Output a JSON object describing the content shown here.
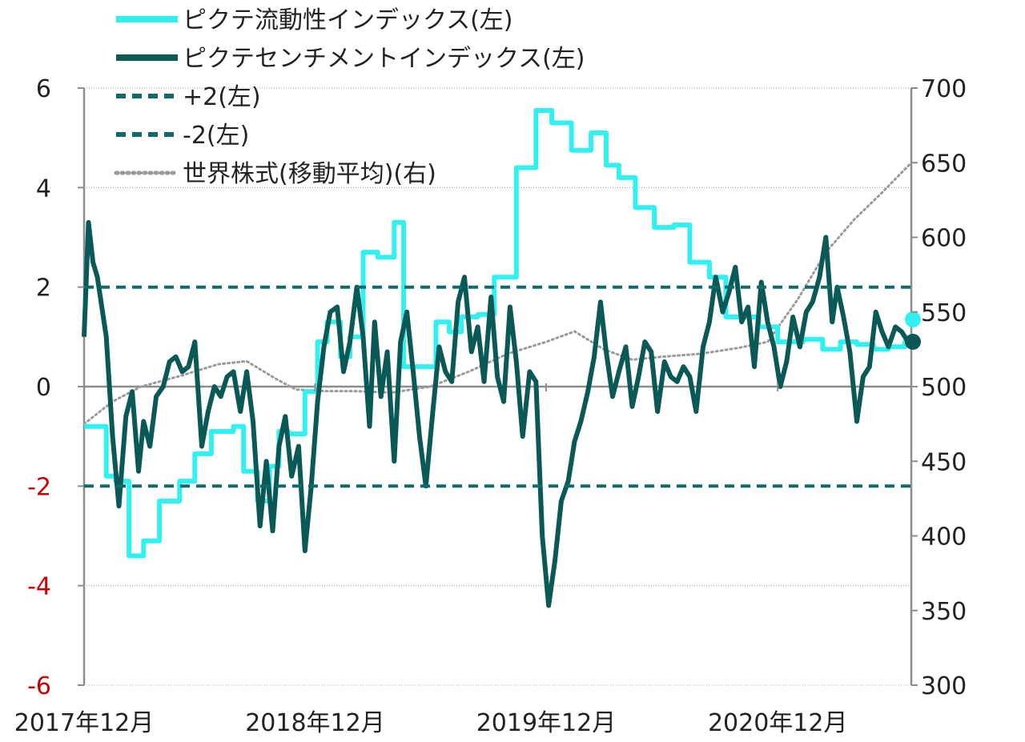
{
  "chart_data": {
    "type": "line",
    "title": "",
    "xlabel": "",
    "ylabel_left": "",
    "ylabel_right": "",
    "x_range": [
      "2017-12-01",
      "2021-06-30"
    ],
    "x_tick_labels": [
      "2017年12月",
      "2018年12月",
      "2019年12月",
      "2020年12月"
    ],
    "x_tick_dates": [
      "2017-12-01",
      "2018-12-01",
      "2019-12-01",
      "2020-12-01"
    ],
    "ylim_left": [
      -6,
      6
    ],
    "left_ticks": [
      {
        "value": 6,
        "label": "6",
        "color": "#222222"
      },
      {
        "value": 4,
        "label": "4",
        "color": "#222222"
      },
      {
        "value": 2,
        "label": "2",
        "color": "#222222"
      },
      {
        "value": 0,
        "label": "0",
        "color": "#222222"
      },
      {
        "value": -2,
        "label": "-2",
        "color": "#cc0000"
      },
      {
        "value": -4,
        "label": "-4",
        "color": "#cc0000"
      },
      {
        "value": -6,
        "label": "-6",
        "color": "#cc0000"
      }
    ],
    "ylim_right": [
      300,
      700
    ],
    "right_ticks": [
      {
        "value": 700,
        "label": "700"
      },
      {
        "value": 650,
        "label": "650"
      },
      {
        "value": 600,
        "label": "600"
      },
      {
        "value": 550,
        "label": "550"
      },
      {
        "value": 500,
        "label": "500"
      },
      {
        "value": 450,
        "label": "450"
      },
      {
        "value": 400,
        "label": "400"
      },
      {
        "value": 350,
        "label": "350"
      },
      {
        "value": 300,
        "label": "300"
      }
    ],
    "gridlines_left": [
      6,
      4,
      -4,
      -6
    ],
    "legend_position": "top-left",
    "legend": [
      {
        "label": "ピクテ流動性インデックス(左)",
        "style": "solid",
        "color": "#33f0f0",
        "width": 6
      },
      {
        "label": "ピクテセンチメントインデックス(左)",
        "style": "solid",
        "color": "#0b5957",
        "width": 6
      },
      {
        "label": "+2(左)",
        "style": "dashed",
        "color": "#0f6b6b",
        "width": 4
      },
      {
        "label": "-2(左)",
        "style": "dashed",
        "color": "#0f6b6b",
        "width": 4
      },
      {
        "label": "世界株式(移動平均)(右)",
        "style": "dotted",
        "color": "#9a9a9a",
        "width": 3
      }
    ],
    "series": [
      {
        "name": "ピクテ流動性インデックス(左)",
        "axis": "left",
        "color": "#33f0f0",
        "step": true,
        "x": [
          "2017-12-01",
          "2018-01-05",
          "2018-01-20",
          "2018-02-10",
          "2018-03-05",
          "2018-03-30",
          "2018-05-01",
          "2018-05-25",
          "2018-06-20",
          "2018-07-25",
          "2018-08-10",
          "2018-09-01",
          "2018-09-20",
          "2018-10-05",
          "2018-10-20",
          "2018-11-15",
          "2018-12-05",
          "2018-12-20",
          "2019-01-10",
          "2019-01-25",
          "2019-02-15",
          "2019-03-10",
          "2019-04-05",
          "2019-04-20",
          "2019-05-15",
          "2019-06-10",
          "2019-07-01",
          "2019-07-20",
          "2019-08-15",
          "2019-09-10",
          "2019-10-15",
          "2019-11-15",
          "2019-12-10",
          "2020-01-10",
          "2020-02-10",
          "2020-03-05",
          "2020-03-25",
          "2020-04-20",
          "2020-05-20",
          "2020-06-20",
          "2020-07-15",
          "2020-08-15",
          "2020-09-10",
          "2020-10-05",
          "2020-11-01",
          "2020-12-01",
          "2020-12-20",
          "2021-01-10",
          "2021-02-10",
          "2021-03-10",
          "2021-04-05",
          "2021-05-01",
          "2021-05-25",
          "2021-06-20",
          "2021-06-30"
        ],
        "y": [
          -0.8,
          -1.8,
          -1.9,
          -3.4,
          -3.1,
          -2.3,
          -1.9,
          -1.35,
          -0.9,
          -0.8,
          -1.7,
          -2.3,
          -1.6,
          -0.9,
          -0.95,
          -0.1,
          0.9,
          1.3,
          0.6,
          1.0,
          2.7,
          2.6,
          3.3,
          0.4,
          0.4,
          1.3,
          1.1,
          1.4,
          1.45,
          2.2,
          4.4,
          5.55,
          5.3,
          4.75,
          5.1,
          4.45,
          4.2,
          3.6,
          3.2,
          3.25,
          2.5,
          2.2,
          1.4,
          1.4,
          1.2,
          0.9,
          0.9,
          0.95,
          0.75,
          0.9,
          0.85,
          0.75,
          0.8,
          0.9,
          0.9
        ]
      },
      {
        "name": "ピクテセンチメントインデックス(左)",
        "axis": "left",
        "color": "#0b5957",
        "step": false,
        "x": [
          "2017-12-01",
          "2017-12-08",
          "2017-12-15",
          "2017-12-22",
          "2018-01-05",
          "2018-01-15",
          "2018-01-25",
          "2018-02-05",
          "2018-02-15",
          "2018-02-25",
          "2018-03-05",
          "2018-03-15",
          "2018-03-25",
          "2018-04-05",
          "2018-04-15",
          "2018-04-25",
          "2018-05-05",
          "2018-05-15",
          "2018-05-25",
          "2018-06-05",
          "2018-06-15",
          "2018-06-25",
          "2018-07-05",
          "2018-07-15",
          "2018-07-25",
          "2018-08-05",
          "2018-08-15",
          "2018-08-25",
          "2018-09-05",
          "2018-09-15",
          "2018-09-25",
          "2018-10-05",
          "2018-10-15",
          "2018-10-25",
          "2018-11-05",
          "2018-11-15",
          "2018-11-25",
          "2018-12-05",
          "2018-12-15",
          "2018-12-25",
          "2019-01-05",
          "2019-01-15",
          "2019-01-25",
          "2019-02-05",
          "2019-02-15",
          "2019-02-25",
          "2019-03-05",
          "2019-03-15",
          "2019-03-25",
          "2019-04-05",
          "2019-04-15",
          "2019-04-25",
          "2019-05-05",
          "2019-05-15",
          "2019-05-25",
          "2019-06-05",
          "2019-06-15",
          "2019-06-25",
          "2019-07-05",
          "2019-07-15",
          "2019-07-25",
          "2019-08-05",
          "2019-08-15",
          "2019-08-25",
          "2019-09-05",
          "2019-09-15",
          "2019-09-25",
          "2019-10-05",
          "2019-10-15",
          "2019-10-25",
          "2019-11-05",
          "2019-11-15",
          "2019-11-25",
          "2019-12-05",
          "2019-12-15",
          "2019-12-25",
          "2020-01-05",
          "2020-01-15",
          "2020-01-25",
          "2020-02-05",
          "2020-02-15",
          "2020-02-25",
          "2020-03-05",
          "2020-03-15",
          "2020-03-25",
          "2020-04-05",
          "2020-04-15",
          "2020-04-25",
          "2020-05-05",
          "2020-05-15",
          "2020-05-25",
          "2020-06-05",
          "2020-06-15",
          "2020-06-25",
          "2020-07-05",
          "2020-07-15",
          "2020-07-25",
          "2020-08-05",
          "2020-08-15",
          "2020-08-25",
          "2020-09-05",
          "2020-09-15",
          "2020-09-25",
          "2020-10-05",
          "2020-10-15",
          "2020-10-25",
          "2020-11-05",
          "2020-11-15",
          "2020-11-25",
          "2020-12-05",
          "2020-12-15",
          "2020-12-25",
          "2021-01-05",
          "2021-01-15",
          "2021-01-25",
          "2021-02-05",
          "2021-02-15",
          "2021-02-25",
          "2021-03-05",
          "2021-03-15",
          "2021-03-25",
          "2021-04-05",
          "2021-04-15",
          "2021-04-25",
          "2021-05-05",
          "2021-05-15",
          "2021-05-25",
          "2021-06-05",
          "2021-06-15",
          "2021-06-25"
        ],
        "y": [
          1.0,
          3.3,
          2.5,
          2.2,
          1.0,
          -1.0,
          -2.4,
          -0.6,
          -0.1,
          -1.7,
          -0.7,
          -1.2,
          -0.2,
          0.0,
          0.5,
          0.6,
          0.3,
          0.4,
          0.9,
          -1.2,
          -0.5,
          0.0,
          -0.2,
          0.2,
          0.3,
          -0.5,
          0.3,
          -0.7,
          -2.8,
          -1.5,
          -2.9,
          -1.2,
          -0.6,
          -1.8,
          -1.2,
          -3.3,
          -2.0,
          -0.3,
          0.8,
          1.5,
          1.6,
          0.3,
          0.9,
          2.0,
          1.0,
          -0.8,
          1.3,
          -0.2,
          0.7,
          -1.5,
          0.9,
          1.5,
          0.3,
          -1.0,
          -2.0,
          -0.5,
          0.8,
          0.3,
          0.1,
          1.7,
          2.2,
          0.7,
          1.2,
          0.1,
          1.8,
          0.2,
          -0.3,
          1.6,
          0.5,
          -1.0,
          0.3,
          0.1,
          -3.0,
          -4.4,
          -3.5,
          -2.3,
          -1.9,
          -1.1,
          -0.7,
          -0.1,
          0.6,
          1.7,
          0.7,
          -0.2,
          0.3,
          0.8,
          -0.4,
          0.2,
          0.9,
          0.7,
          -0.5,
          0.5,
          0.2,
          0.1,
          0.4,
          0.2,
          -0.5,
          0.8,
          1.3,
          2.2,
          1.5,
          1.9,
          2.4,
          1.3,
          1.6,
          0.4,
          2.1,
          1.3,
          0.8,
          0.0,
          0.5,
          1.4,
          0.8,
          1.5,
          1.7,
          2.2,
          3.0,
          1.3,
          2.0,
          1.4,
          0.7,
          -0.7,
          0.2,
          0.4,
          1.5,
          1.1,
          0.8,
          1.2,
          1.1,
          0.9
        ]
      },
      {
        "name": "+2(左)",
        "axis": "left",
        "color": "#0f6b6b",
        "step": false,
        "x": [
          "2017-12-01",
          "2021-06-30"
        ],
        "y": [
          2,
          2
        ]
      },
      {
        "name": "-2(左)",
        "axis": "left",
        "color": "#0f6b6b",
        "step": false,
        "x": [
          "2017-12-01",
          "2021-06-30"
        ],
        "y": [
          -2,
          -2
        ]
      },
      {
        "name": "世界株式(移動平均)(右)",
        "axis": "right",
        "color": "#9a9a9a",
        "step": false,
        "x": [
          "2017-12-01",
          "2018-01-15",
          "2018-03-01",
          "2018-05-01",
          "2018-07-01",
          "2018-08-15",
          "2018-10-01",
          "2018-11-01",
          "2018-12-15",
          "2019-02-01",
          "2019-04-01",
          "2019-06-01",
          "2019-08-01",
          "2019-10-01",
          "2019-12-01",
          "2020-01-15",
          "2020-03-01",
          "2020-04-15",
          "2020-06-01",
          "2020-08-01",
          "2020-10-01",
          "2020-11-15",
          "2021-01-01",
          "2021-02-15",
          "2021-04-01",
          "2021-05-15",
          "2021-06-30"
        ],
        "y": [
          475,
          490,
          500,
          507,
          515,
          517,
          505,
          498,
          497,
          497,
          496,
          500,
          510,
          522,
          530,
          537,
          525,
          518,
          520,
          522,
          526,
          530,
          558,
          590,
          612,
          630,
          650
        ]
      }
    ],
    "end_markers": [
      {
        "series": "ピクテ流動性インデックス(左)",
        "x": "2021-06-30",
        "y": 0.9,
        "color": "#33f0f0"
      },
      {
        "series": "ピクテセンチメントインデックス(左)",
        "x": "2021-06-30",
        "y": 0.9,
        "color": "#0b5957"
      }
    ]
  }
}
